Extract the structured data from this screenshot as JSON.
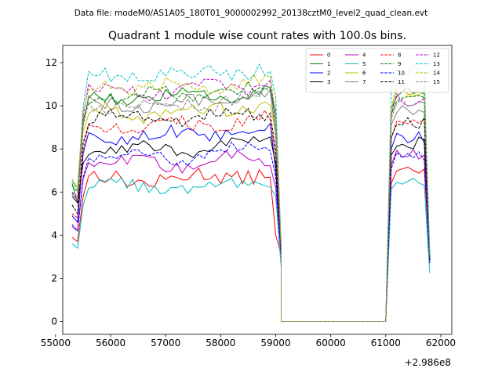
{
  "figure": {
    "suptitle": "Data file: modeM0/AS1A05_180T01_9000002992_20138cztM0_level2_quad_clean.evt",
    "offset_label": "+2.986e8"
  },
  "chart_data": {
    "type": "line",
    "title": "Quadrant 1 module wise count rates with 100.0s bins.",
    "xlabel": "",
    "ylabel": "",
    "x_offset": 298600000,
    "xlim": [
      55130,
      62200
    ],
    "ylim": [
      -0.6,
      12.8
    ],
    "xticks": [
      55000,
      56000,
      57000,
      58000,
      59000,
      60000,
      61000,
      62000
    ],
    "yticks": [
      0,
      2,
      4,
      6,
      8,
      10,
      12
    ],
    "grid": false,
    "legend": {
      "placement": "top-right",
      "columns": 4
    },
    "segments": [
      {
        "start": 55300,
        "step": 100,
        "count": 39
      },
      {
        "start": 59100,
        "step": 100,
        "count": 20
      },
      {
        "start": 61100,
        "step": 100,
        "count": 8
      }
    ],
    "series": [
      {
        "name": "0",
        "color": "#ff0000",
        "dash": "solid",
        "edge": [
          3.9,
          3.7
        ],
        "level": 6.6,
        "noise": 0.35,
        "tail": [
          4.0,
          3.1
        ],
        "seg3": 6.9
      },
      {
        "name": "1",
        "color": "#008000",
        "dash": "solid",
        "edge": [
          6.4,
          5.5
        ],
        "level": 10.4,
        "noise": 0.25,
        "tail": [
          9.3,
          3.2
        ],
        "seg3": 10.6
      },
      {
        "name": "2",
        "color": "#0000ff",
        "dash": "solid",
        "edge": [
          4.9,
          4.6
        ],
        "level": 8.6,
        "noise": 0.35,
        "tail": [
          7.0,
          3.1
        ],
        "seg3": 8.6
      },
      {
        "name": "3",
        "color": "#000000",
        "dash": "solid",
        "edge": [
          5.8,
          5.5
        ],
        "level": 8.0,
        "noise": 0.3,
        "tail": [
          7.3,
          3.2
        ],
        "seg3": 8.3
      },
      {
        "name": "4",
        "color": "#bf00bf",
        "dash": "solid",
        "edge": [
          4.4,
          4.2
        ],
        "level": 7.3,
        "noise": 0.3,
        "tail": [
          6.2,
          3.0
        ],
        "seg3": 7.8
      },
      {
        "name": "5",
        "color": "#00bfbf",
        "dash": "solid",
        "edge": [
          3.6,
          3.4
        ],
        "level": 6.2,
        "noise": 0.3,
        "tail": [
          5.8,
          2.5
        ],
        "seg3": 6.6
      },
      {
        "name": "6",
        "color": "#bfbf00",
        "dash": "solid",
        "edge": [
          6.5,
          6.2
        ],
        "level": 9.7,
        "noise": 0.35,
        "tail": [
          8.8,
          3.3
        ],
        "seg3": 10.6
      },
      {
        "name": "7",
        "color": "#808080",
        "dash": "solid",
        "edge": [
          6.0,
          5.8
        ],
        "level": 10.1,
        "noise": 0.3,
        "tail": [
          8.6,
          3.3
        ],
        "seg3": 9.8
      },
      {
        "name": "8",
        "color": "#ff0000",
        "dash": "dashed",
        "edge": [
          5.0,
          4.8
        ],
        "level": 9.1,
        "noise": 0.3,
        "tail": [
          7.6,
          3.2
        ],
        "seg3": 9.1
      },
      {
        "name": "9",
        "color": "#008000",
        "dash": "dashed",
        "edge": [
          6.3,
          6.0
        ],
        "level": 10.5,
        "noise": 0.3,
        "tail": [
          9.8,
          3.3
        ],
        "seg3": 10.3
      },
      {
        "name": "10",
        "color": "#0000ff",
        "dash": "dashed",
        "edge": [
          4.5,
          4.2
        ],
        "level": 7.7,
        "noise": 0.3,
        "tail": [
          6.7,
          3.0
        ],
        "seg3": 7.6
      },
      {
        "name": "11",
        "color": "#000000",
        "dash": "dashed",
        "edge": [
          5.4,
          5.0
        ],
        "level": 9.4,
        "noise": 0.3,
        "tail": [
          7.9,
          3.2
        ],
        "seg3": 9.2
      },
      {
        "name": "12",
        "color": "#bf00bf",
        "dash": "dashed",
        "edge": [
          6.0,
          5.6
        ],
        "level": 10.7,
        "noise": 0.3,
        "tail": [
          9.4,
          3.3
        ],
        "seg3": 10.3
      },
      {
        "name": "13",
        "color": "#00bfbf",
        "dash": "dashed",
        "edge": [
          6.5,
          6.1
        ],
        "level": 11.4,
        "noise": 0.35,
        "tail": [
          10.4,
          3.5
        ],
        "seg3": 11.7
      },
      {
        "name": "14",
        "color": "#bfbf00",
        "dash": "dashed",
        "edge": [
          6.6,
          6.2
        ],
        "level": 10.9,
        "noise": 0.35,
        "tail": [
          9.6,
          3.4
        ],
        "seg3": 10.6
      },
      {
        "name": "15",
        "color": "#808080",
        "dash": "dashed",
        "edge": [
          5.9,
          5.6
        ],
        "level": 10.1,
        "noise": 0.3,
        "tail": [
          8.9,
          3.3
        ],
        "seg3": 10.1
      }
    ]
  }
}
